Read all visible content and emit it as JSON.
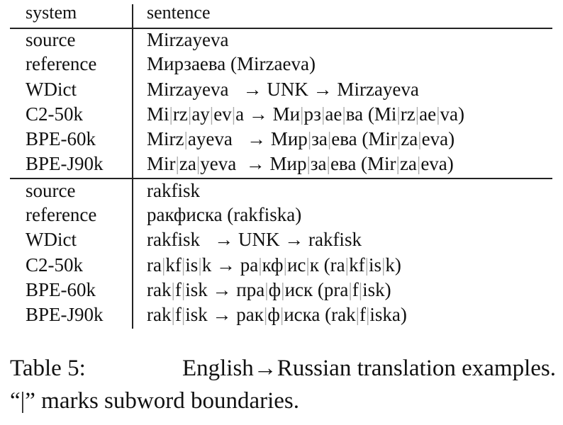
{
  "table": {
    "header": {
      "system": "system",
      "sentence": "sentence"
    },
    "groups": [
      {
        "rows": [
          {
            "system": "source",
            "sentence": "Mirzayeva"
          },
          {
            "system": "reference",
            "sentence": "Мирзаева (Mirzaeva)"
          },
          {
            "system": "WDict",
            "sentence": "Mirzayeva   → UNK → Mirzayeva"
          },
          {
            "system": "C2-50k",
            "sentence": "Mi|rz|ay|ev|a → Ми|рз|ае|ва (Mi|rz|ae|va)"
          },
          {
            "system": "BPE-60k",
            "sentence": "Mirz|ayeva   → Мир|за|ева (Mir|za|eva)"
          },
          {
            "system": "BPE-J90k",
            "sentence": "Mir|za|yeva  → Мир|за|ева (Mir|za|eva)"
          }
        ]
      },
      {
        "rows": [
          {
            "system": "source",
            "sentence": "rakfisk"
          },
          {
            "system": "reference",
            "sentence": "ракфиска (rakfiska)"
          },
          {
            "system": "WDict",
            "sentence": "rakfisk   → UNK → rakfisk"
          },
          {
            "system": "C2-50k",
            "sentence": "ra|kf|is|k → ра|кф|ис|к (ra|kf|is|k)"
          },
          {
            "system": "BPE-60k",
            "sentence": "rak|f|isk → пра|ф|иск (pra|f|isk)"
          },
          {
            "system": "BPE-J90k",
            "sentence": "rak|f|isk → рак|ф|иска (rak|f|iska)"
          }
        ]
      }
    ]
  },
  "caption": {
    "line1_left": "Table 5:",
    "line1_right": "English→Russian translation examples.",
    "line2": "“|” marks subword boundaries."
  }
}
